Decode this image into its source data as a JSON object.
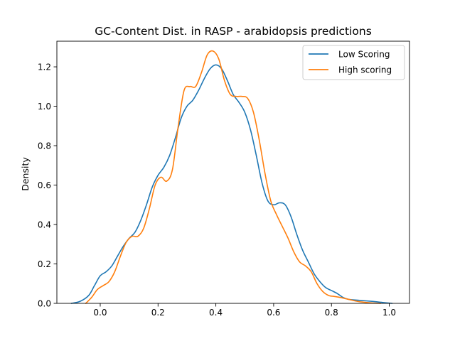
{
  "chart_data": {
    "type": "line",
    "title": "GC-Content Dist. in RASP - arabidopsis predictions",
    "xlabel": "",
    "ylabel": "Density",
    "xlim": [
      -0.15,
      1.07
    ],
    "ylim": [
      0,
      1.33
    ],
    "xticks": [
      0.0,
      0.2,
      0.4,
      0.6,
      0.8,
      1.0
    ],
    "xtick_labels": [
      "0.0",
      "0.2",
      "0.4",
      "0.6",
      "0.8",
      "1.0"
    ],
    "yticks": [
      0.0,
      0.2,
      0.4,
      0.6,
      0.8,
      1.0,
      1.2
    ],
    "ytick_labels": [
      "0.0",
      "0.2",
      "0.4",
      "0.6",
      "0.8",
      "1.0",
      "1.2"
    ],
    "grid": false,
    "legend_position": "upper right",
    "series": [
      {
        "name": "Low Scoring",
        "color": "#1f77b4",
        "points": [
          [
            -0.1,
            0.0
          ],
          [
            -0.07,
            0.01
          ],
          [
            -0.04,
            0.04
          ],
          [
            -0.02,
            0.09
          ],
          [
            0.0,
            0.14
          ],
          [
            0.02,
            0.16
          ],
          [
            0.04,
            0.19
          ],
          [
            0.06,
            0.24
          ],
          [
            0.08,
            0.29
          ],
          [
            0.1,
            0.33
          ],
          [
            0.12,
            0.36
          ],
          [
            0.14,
            0.42
          ],
          [
            0.16,
            0.5
          ],
          [
            0.18,
            0.59
          ],
          [
            0.2,
            0.65
          ],
          [
            0.22,
            0.69
          ],
          [
            0.24,
            0.75
          ],
          [
            0.26,
            0.84
          ],
          [
            0.28,
            0.94
          ],
          [
            0.3,
            1.0
          ],
          [
            0.32,
            1.03
          ],
          [
            0.34,
            1.08
          ],
          [
            0.36,
            1.14
          ],
          [
            0.38,
            1.19
          ],
          [
            0.4,
            1.21
          ],
          [
            0.42,
            1.19
          ],
          [
            0.44,
            1.13
          ],
          [
            0.46,
            1.06
          ],
          [
            0.48,
            1.02
          ],
          [
            0.5,
            0.97
          ],
          [
            0.52,
            0.88
          ],
          [
            0.54,
            0.75
          ],
          [
            0.56,
            0.61
          ],
          [
            0.58,
            0.52
          ],
          [
            0.6,
            0.5
          ],
          [
            0.62,
            0.51
          ],
          [
            0.64,
            0.5
          ],
          [
            0.66,
            0.44
          ],
          [
            0.68,
            0.35
          ],
          [
            0.7,
            0.27
          ],
          [
            0.72,
            0.21
          ],
          [
            0.74,
            0.15
          ],
          [
            0.76,
            0.11
          ],
          [
            0.78,
            0.08
          ],
          [
            0.8,
            0.065
          ],
          [
            0.82,
            0.05
          ],
          [
            0.84,
            0.03
          ],
          [
            0.86,
            0.02
          ],
          [
            0.9,
            0.015
          ],
          [
            0.94,
            0.01
          ],
          [
            0.98,
            0.004
          ],
          [
            1.01,
            0.0
          ]
        ]
      },
      {
        "name": "High scoring",
        "color": "#ff7f0e",
        "points": [
          [
            -0.05,
            0.0
          ],
          [
            -0.03,
            0.03
          ],
          [
            -0.01,
            0.07
          ],
          [
            0.01,
            0.09
          ],
          [
            0.03,
            0.11
          ],
          [
            0.05,
            0.16
          ],
          [
            0.07,
            0.24
          ],
          [
            0.09,
            0.31
          ],
          [
            0.11,
            0.34
          ],
          [
            0.13,
            0.34
          ],
          [
            0.15,
            0.38
          ],
          [
            0.17,
            0.48
          ],
          [
            0.19,
            0.6
          ],
          [
            0.21,
            0.64
          ],
          [
            0.23,
            0.62
          ],
          [
            0.25,
            0.68
          ],
          [
            0.27,
            0.9
          ],
          [
            0.29,
            1.08
          ],
          [
            0.31,
            1.1
          ],
          [
            0.33,
            1.1
          ],
          [
            0.35,
            1.17
          ],
          [
            0.37,
            1.26
          ],
          [
            0.39,
            1.28
          ],
          [
            0.41,
            1.24
          ],
          [
            0.43,
            1.13
          ],
          [
            0.45,
            1.06
          ],
          [
            0.47,
            1.05
          ],
          [
            0.49,
            1.05
          ],
          [
            0.51,
            1.04
          ],
          [
            0.53,
            0.97
          ],
          [
            0.55,
            0.83
          ],
          [
            0.57,
            0.66
          ],
          [
            0.59,
            0.52
          ],
          [
            0.61,
            0.45
          ],
          [
            0.63,
            0.39
          ],
          [
            0.65,
            0.33
          ],
          [
            0.67,
            0.26
          ],
          [
            0.69,
            0.21
          ],
          [
            0.71,
            0.19
          ],
          [
            0.73,
            0.16
          ],
          [
            0.75,
            0.1
          ],
          [
            0.77,
            0.06
          ],
          [
            0.79,
            0.04
          ],
          [
            0.81,
            0.035
          ],
          [
            0.83,
            0.03
          ],
          [
            0.86,
            0.02
          ],
          [
            0.89,
            0.01
          ],
          [
            0.93,
            0.003
          ],
          [
            0.97,
            0.0
          ]
        ]
      }
    ]
  }
}
